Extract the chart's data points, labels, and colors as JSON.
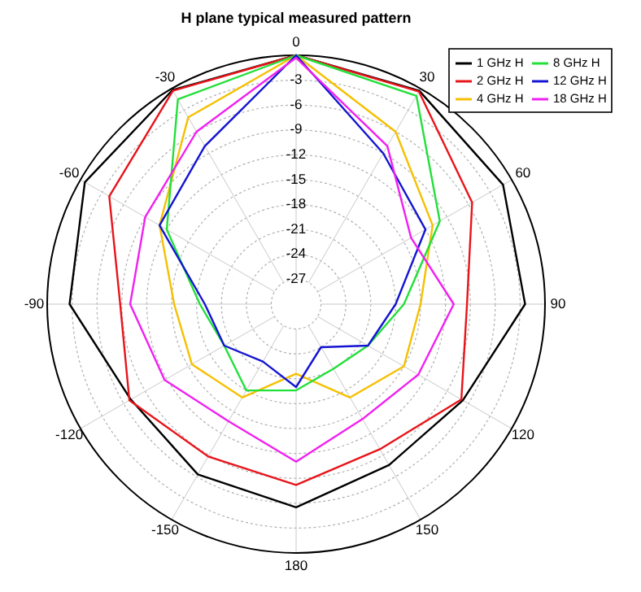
{
  "chart_data": {
    "type": "radar",
    "title": "H plane typical measured pattern",
    "categories": [
      "0",
      "30",
      "60",
      "90",
      "120",
      "150",
      "180",
      "-150",
      "-120",
      "-90",
      "-60",
      "-30"
    ],
    "ylim": [
      -30,
      0
    ],
    "yticks": [
      -27,
      -24,
      -21,
      -18,
      -15,
      -12,
      -9,
      -6,
      -3
    ],
    "grid": true,
    "legend": "top right",
    "series": [
      {
        "name": "1 GHz H",
        "color": "#000000",
        "values": [
          0,
          -0.3,
          -1.2,
          -2.4,
          -6.8,
          -7.6,
          -5.5,
          -6.3,
          -7.0,
          -2.7,
          -0.6,
          -0.2
        ]
      },
      {
        "name": "2 GHz H",
        "color": "#e8141a",
        "values": [
          0,
          -0.4,
          -5.5,
          -9.4,
          -7.0,
          -9.8,
          -8.2,
          -8.8,
          -6.8,
          -8.8,
          -4.0,
          -0.3
        ]
      },
      {
        "name": "4 GHz H",
        "color": "#f5c000",
        "values": [
          0,
          -6,
          -11,
          -15,
          -15,
          -17,
          -21.6,
          -17,
          -15.5,
          -15.3,
          -11,
          -4
        ]
      },
      {
        "name": "8 GHz H",
        "color": "#22e03a",
        "values": [
          0,
          -1,
          -10,
          -17,
          -20,
          -21,
          -19.6,
          -18,
          -20,
          -18.4,
          -12,
          -1.5
        ]
      },
      {
        "name": "12 GHz H",
        "color": "#1414d2",
        "values": [
          0,
          -9,
          -12,
          -18,
          -20,
          -24,
          -20,
          -22,
          -20,
          -19,
          -11,
          -8
        ]
      },
      {
        "name": "18 GHz H",
        "color": "#f020f0",
        "values": [
          -0.3,
          -8,
          -14,
          -11,
          -13,
          -14,
          -11,
          -13.7,
          -11.7,
          -10,
          -9,
          -6
        ]
      }
    ]
  }
}
